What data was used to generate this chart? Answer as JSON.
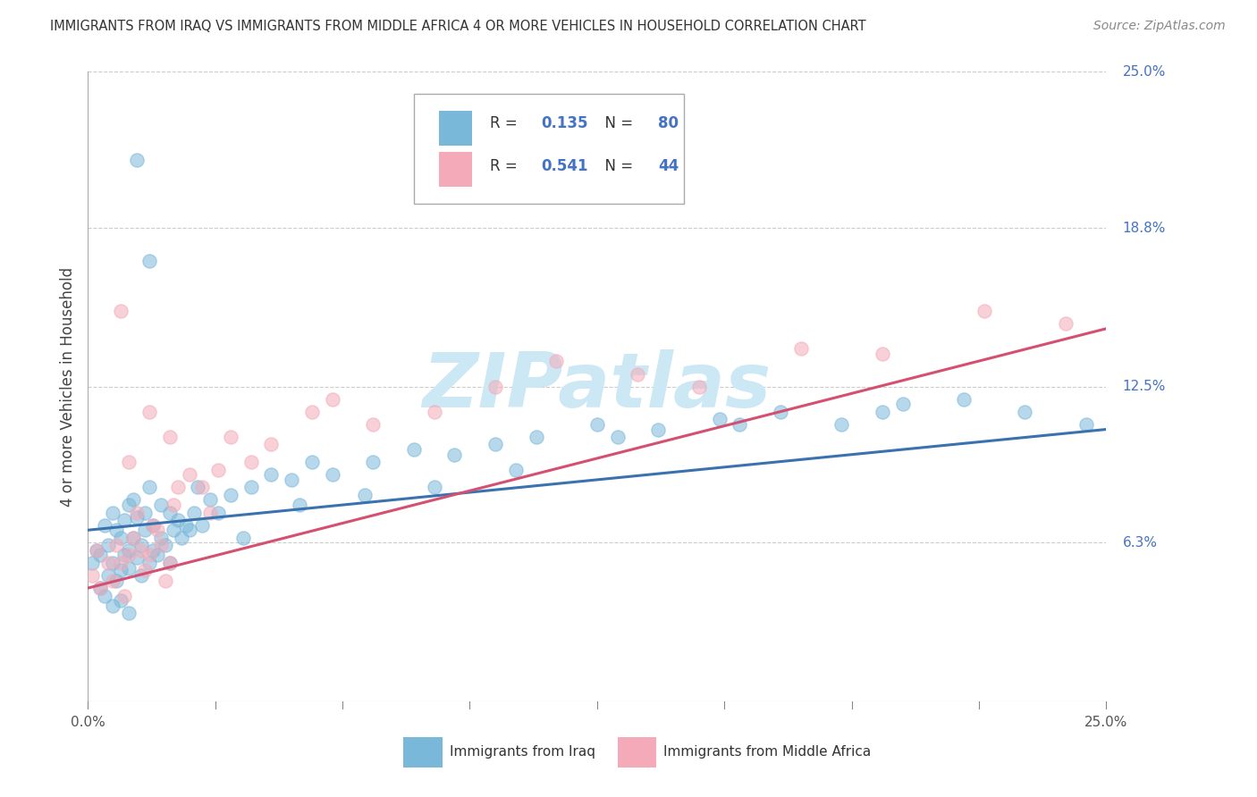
{
  "title": "IMMIGRANTS FROM IRAQ VS IMMIGRANTS FROM MIDDLE AFRICA 4 OR MORE VEHICLES IN HOUSEHOLD CORRELATION CHART",
  "source": "Source: ZipAtlas.com",
  "ylabel": "4 or more Vehicles in Household",
  "xmin": 0.0,
  "xmax": 25.0,
  "ymin": 0.0,
  "ymax": 25.0,
  "ytick_values": [
    6.3,
    12.5,
    18.8,
    25.0
  ],
  "ytick_labels": [
    "6.3%",
    "12.5%",
    "18.8%",
    "25.0%"
  ],
  "iraq_color": "#7ab8d9",
  "iraq_line_color": "#3a72b0",
  "middle_africa_color": "#f4aab8",
  "middle_africa_line_color": "#d45070",
  "iraq_R": 0.135,
  "iraq_N": 80,
  "middle_africa_R": 0.541,
  "middle_africa_N": 44,
  "iraq_scatter_x": [
    0.1,
    0.2,
    0.3,
    0.3,
    0.4,
    0.5,
    0.5,
    0.6,
    0.6,
    0.7,
    0.7,
    0.8,
    0.8,
    0.9,
    0.9,
    1.0,
    1.0,
    1.0,
    1.1,
    1.1,
    1.2,
    1.2,
    1.3,
    1.3,
    1.4,
    1.4,
    1.5,
    1.5,
    1.6,
    1.6,
    1.7,
    1.8,
    1.8,
    1.9,
    2.0,
    2.0,
    2.1,
    2.2,
    2.3,
    2.4,
    2.5,
    2.6,
    2.8,
    3.0,
    3.2,
    3.5,
    4.0,
    4.5,
    5.0,
    5.5,
    6.0,
    7.0,
    8.0,
    9.0,
    10.0,
    11.0,
    12.5,
    14.0,
    15.5,
    17.0,
    18.5,
    20.0,
    21.5,
    23.0,
    1.2,
    1.5,
    0.8,
    1.0,
    0.6,
    0.4,
    2.7,
    3.8,
    5.2,
    6.8,
    8.5,
    10.5,
    13.0,
    16.0,
    19.5,
    24.5
  ],
  "iraq_scatter_y": [
    5.5,
    6.0,
    5.8,
    4.5,
    7.0,
    6.2,
    5.0,
    5.5,
    7.5,
    6.8,
    4.8,
    6.5,
    5.2,
    7.2,
    5.8,
    6.0,
    7.8,
    5.3,
    6.5,
    8.0,
    5.7,
    7.3,
    6.2,
    5.0,
    7.5,
    6.8,
    5.5,
    8.5,
    6.0,
    7.0,
    5.8,
    6.5,
    7.8,
    6.2,
    7.5,
    5.5,
    6.8,
    7.2,
    6.5,
    7.0,
    6.8,
    7.5,
    7.0,
    8.0,
    7.5,
    8.2,
    8.5,
    9.0,
    8.8,
    9.5,
    9.0,
    9.5,
    10.0,
    9.8,
    10.2,
    10.5,
    11.0,
    10.8,
    11.2,
    11.5,
    11.0,
    11.8,
    12.0,
    11.5,
    21.5,
    17.5,
    4.0,
    3.5,
    3.8,
    4.2,
    8.5,
    6.5,
    7.8,
    8.2,
    8.5,
    9.2,
    10.5,
    11.0,
    11.5,
    11.0
  ],
  "middle_africa_scatter_x": [
    0.1,
    0.2,
    0.3,
    0.5,
    0.6,
    0.7,
    0.8,
    0.9,
    1.0,
    1.1,
    1.2,
    1.3,
    1.4,
    1.5,
    1.6,
    1.7,
    1.8,
    1.9,
    2.0,
    2.1,
    2.2,
    2.5,
    2.8,
    3.2,
    3.5,
    4.5,
    5.5,
    7.0,
    10.0,
    13.5,
    17.5,
    22.0,
    1.0,
    1.5,
    2.0,
    3.0,
    4.0,
    6.0,
    8.5,
    11.5,
    15.0,
    19.5,
    24.0,
    0.8
  ],
  "middle_africa_scatter_y": [
    5.0,
    6.0,
    4.5,
    5.5,
    4.8,
    6.2,
    5.5,
    4.2,
    5.8,
    6.5,
    7.5,
    6.0,
    5.2,
    5.8,
    7.0,
    6.8,
    6.2,
    4.8,
    5.5,
    7.8,
    8.5,
    9.0,
    8.5,
    9.2,
    10.5,
    10.2,
    11.5,
    11.0,
    12.5,
    13.0,
    14.0,
    15.5,
    9.5,
    11.5,
    10.5,
    7.5,
    9.5,
    12.0,
    11.5,
    13.5,
    12.5,
    13.8,
    15.0,
    15.5
  ],
  "iraq_trend_x0": 0.0,
  "iraq_trend_y0": 6.8,
  "iraq_trend_x1": 25.0,
  "iraq_trend_y1": 10.8,
  "ma_trend_x0": 0.0,
  "ma_trend_y0": 4.5,
  "ma_trend_x1": 25.0,
  "ma_trend_y1": 14.8,
  "background_color": "#ffffff",
  "grid_color": "#cccccc",
  "watermark_text": "ZIPatlas",
  "watermark_color": "#cce8f4",
  "legend_iraq_label": "Immigrants from Iraq",
  "legend_ma_label": "Immigrants from Middle Africa"
}
